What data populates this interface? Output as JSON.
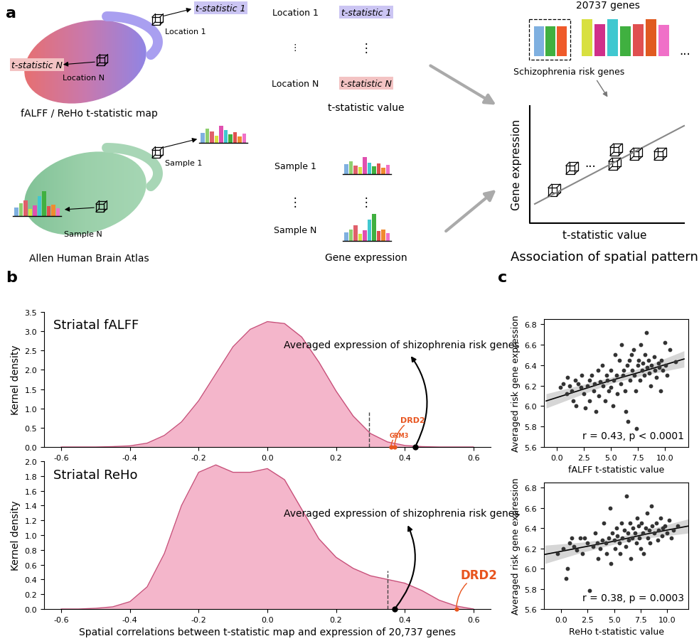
{
  "panel_labels": [
    "a",
    "b",
    "c"
  ],
  "diagram": {
    "map": {
      "caption": "fALFF / ReHo t-statistic map",
      "stat_first": "t-statistic 1",
      "loc_first": "Location 1",
      "stat_last": "t-statistic N",
      "loc_last": "Location N"
    },
    "stat_table": {
      "rows": [
        "Location 1",
        "⋮",
        "Location N"
      ],
      "values": [
        "t-statistic 1",
        "⋮",
        "t-statistic N"
      ],
      "caption": "t-statistic value"
    },
    "atlas": {
      "caption": "Allen Human Brain Atlas",
      "sample_first": "Sample 1",
      "sample_last": "Sample N"
    },
    "expr_table": {
      "rows": [
        "Sample 1",
        "⋮",
        "Sample N"
      ],
      "caption": "Gene expression"
    },
    "genes": {
      "count_label": "20737 genes",
      "subset_label": "Schizophrenia risk genes",
      "more": "..."
    },
    "association": {
      "ylabel": "Gene expression",
      "xlabel": "t-statistic value",
      "dots": "...",
      "caption": "Association of spatial pattern"
    }
  },
  "chart_data": [
    {
      "type": "line",
      "title": "Striatal fALFF",
      "ylabel": "Kernel density",
      "color": "#f4b6cb",
      "x": [
        -0.6,
        -0.55,
        -0.5,
        -0.45,
        -0.4,
        -0.35,
        -0.3,
        -0.25,
        -0.2,
        -0.15,
        -0.1,
        -0.05,
        0.0,
        0.05,
        0.1,
        0.15,
        0.2,
        0.25,
        0.3,
        0.35,
        0.4,
        0.45,
        0.5,
        0.55,
        0.6
      ],
      "values": [
        0,
        0,
        0,
        0.01,
        0.03,
        0.1,
        0.3,
        0.65,
        1.2,
        1.9,
        2.6,
        3.05,
        3.25,
        3.2,
        2.85,
        2.2,
        1.45,
        0.8,
        0.35,
        0.13,
        0.04,
        0.01,
        0,
        0,
        0
      ],
      "xlim": [
        -0.65,
        0.65
      ],
      "xticks": [
        -0.6,
        -0.4,
        -0.2,
        0.0,
        0.2,
        0.4,
        0.6
      ],
      "ylim": [
        0.0,
        3.5
      ],
      "yticks": [
        0.0,
        0.5,
        1.0,
        1.5,
        2.0,
        2.5,
        3.0,
        3.5
      ],
      "threshold": 0.295,
      "markers": [
        {
          "label": "Averaged expression of shizophrenia risk genes",
          "x": 0.43,
          "color": "#000000"
        },
        {
          "label": "DRD2",
          "x": 0.37,
          "color": "#e8541e"
        },
        {
          "label": "GRM3",
          "x": 0.36,
          "color": "#e8541e"
        }
      ]
    },
    {
      "type": "line",
      "title": "Striatal ReHo",
      "ylabel": "Kernel density",
      "xlabel": "Spatial correlations between t-statistic map and expression of 20,737 genes",
      "color": "#f4b6cb",
      "x": [
        -0.6,
        -0.55,
        -0.5,
        -0.45,
        -0.4,
        -0.35,
        -0.3,
        -0.25,
        -0.2,
        -0.15,
        -0.1,
        -0.05,
        0.0,
        0.05,
        0.1,
        0.15,
        0.2,
        0.25,
        0.3,
        0.35,
        0.4,
        0.45,
        0.5,
        0.55,
        0.6
      ],
      "values": [
        0,
        0,
        0.01,
        0.03,
        0.1,
        0.3,
        0.75,
        1.4,
        1.85,
        1.95,
        1.85,
        1.85,
        1.9,
        1.75,
        1.35,
        0.95,
        0.7,
        0.55,
        0.45,
        0.4,
        0.35,
        0.25,
        0.12,
        0.04,
        0
      ],
      "xlim": [
        -0.65,
        0.65
      ],
      "xticks": [
        -0.6,
        -0.4,
        -0.2,
        0.0,
        0.2,
        0.4,
        0.6
      ],
      "ylim": [
        0.0,
        2.0
      ],
      "yticks": [
        0.0,
        0.2,
        0.4,
        0.6,
        0.8,
        1.0,
        1.2,
        1.4,
        1.6,
        1.8,
        2.0
      ],
      "threshold": 0.35,
      "markers": [
        {
          "label": "Averaged expression of shizophrenia risk genes",
          "x": 0.37,
          "color": "#000000"
        },
        {
          "label": "DRD2",
          "x": 0.55,
          "color": "#e8541e"
        }
      ]
    },
    {
      "type": "scatter",
      "xlabel": "fALFF t-statistic value",
      "ylabel": "Averaged risk gene expression",
      "annotation": "r = 0.43, p < 0.0001",
      "color": "#333333",
      "x": [
        0.3,
        0.6,
        0.9,
        1.0,
        1.2,
        1.4,
        1.5,
        1.7,
        1.8,
        2.0,
        2.2,
        2.3,
        2.5,
        2.6,
        2.8,
        3.0,
        3.0,
        3.2,
        3.4,
        3.5,
        3.6,
        3.8,
        3.9,
        4.0,
        4.2,
        4.3,
        4.5,
        4.6,
        4.7,
        4.8,
        5.0,
        5.0,
        5.2,
        5.3,
        5.4,
        5.5,
        5.6,
        5.8,
        5.9,
        6.0,
        6.1,
        6.2,
        6.3,
        6.4,
        6.5,
        6.6,
        6.7,
        6.8,
        6.9,
        7.0,
        7.1,
        7.2,
        7.3,
        7.4,
        7.5,
        7.6,
        7.7,
        7.8,
        7.9,
        8.0,
        8.1,
        8.2,
        8.3,
        8.4,
        8.5,
        8.6,
        8.7,
        8.8,
        9.0,
        9.1,
        9.2,
        9.4,
        9.5,
        9.6,
        9.7,
        9.8,
        10.0,
        10.1,
        10.2,
        10.5,
        11.0
      ],
      "values": [
        6.18,
        6.22,
        6.12,
        6.28,
        6.2,
        6.15,
        6.05,
        6.25,
        6.0,
        6.22,
        6.18,
        6.3,
        6.12,
        5.98,
        6.2,
        6.25,
        6.05,
        6.3,
        6.15,
        6.22,
        5.95,
        6.35,
        6.1,
        6.24,
        6.4,
        6.2,
        6.05,
        6.3,
        6.25,
        6.15,
        6.35,
        6.18,
        6.0,
        6.25,
        6.5,
        6.3,
        6.12,
        6.45,
        6.22,
        6.6,
        6.3,
        6.35,
        6.15,
        5.95,
        6.4,
        5.85,
        6.45,
        6.25,
        6.5,
        6.35,
        6.55,
        6.3,
        6.15,
        5.78,
        6.4,
        6.45,
        6.25,
        6.6,
        6.35,
        6.42,
        6.3,
        6.5,
        6.72,
        6.38,
        6.45,
        6.32,
        6.2,
        6.4,
        6.48,
        6.35,
        6.28,
        6.42,
        6.38,
        6.15,
        6.45,
        6.35,
        6.62,
        6.4,
        6.3,
        6.55,
        6.43
      ],
      "fit": {
        "x": [
          -1.0,
          2.0,
          5.0,
          8.0,
          11.8
        ],
        "values": [
          6.05,
          6.15,
          6.25,
          6.34,
          6.46
        ],
        "lower": [
          5.98,
          6.1,
          6.22,
          6.3,
          6.38
        ],
        "upper": [
          6.12,
          6.2,
          6.28,
          6.38,
          6.54
        ]
      },
      "xlim": [
        -1.2,
        12.2
      ],
      "xticks": [
        0.0,
        2.5,
        5.0,
        7.5,
        10.0
      ],
      "ylim": [
        5.6,
        6.85
      ],
      "yticks": [
        5.6,
        5.8,
        6.0,
        6.2,
        6.4,
        6.6,
        6.8
      ]
    },
    {
      "type": "scatter",
      "xlabel": "ReHo t-statistic value",
      "ylabel": "Averaged risk gene expression",
      "annotation": "r = 0.38, p = 0.0003",
      "color": "#333333",
      "x": [
        -0.3,
        0.2,
        0.5,
        0.6,
        0.8,
        1.0,
        1.2,
        1.5,
        1.8,
        2.0,
        2.2,
        2.5,
        2.7,
        3.0,
        3.2,
        3.4,
        3.5,
        3.7,
        3.9,
        4.0,
        4.2,
        4.3,
        4.5,
        4.6,
        4.7,
        4.8,
        5.0,
        5.1,
        5.2,
        5.3,
        5.5,
        5.6,
        5.7,
        5.8,
        6.0,
        6.1,
        6.2,
        6.3,
        6.4,
        6.5,
        6.6,
        6.7,
        6.8,
        7.0,
        7.1,
        7.2,
        7.3,
        7.4,
        7.5,
        7.6,
        7.7,
        7.8,
        8.0,
        8.1,
        8.2,
        8.3,
        8.4,
        8.5,
        8.6,
        8.8,
        9.0,
        9.1,
        9.2,
        9.4,
        9.5,
        9.6,
        9.8,
        10.0,
        10.2,
        10.4,
        10.6,
        11.0
      ],
      "values": [
        6.15,
        6.2,
        5.9,
        6.0,
        6.25,
        6.3,
        6.22,
        6.18,
        6.3,
        6.15,
        6.3,
        6.25,
        5.78,
        6.22,
        6.35,
        6.25,
        6.1,
        6.2,
        6.28,
        6.45,
        6.25,
        6.15,
        6.3,
        6.6,
        6.05,
        6.35,
        6.28,
        6.2,
        6.4,
        6.32,
        6.25,
        6.15,
        6.45,
        6.3,
        6.38,
        6.22,
        6.72,
        6.35,
        6.28,
        6.45,
        6.1,
        6.3,
        6.4,
        6.35,
        6.25,
        6.5,
        6.42,
        6.3,
        6.2,
        6.45,
        6.35,
        6.15,
        6.4,
        6.55,
        6.3,
        6.38,
        6.25,
        6.62,
        6.42,
        6.35,
        6.45,
        6.28,
        6.38,
        6.5,
        6.32,
        6.4,
        6.42,
        6.35,
        6.48,
        6.3,
        6.38,
        6.42
      ],
      "fit": {
        "x": [
          -1.5,
          2.0,
          5.0,
          8.0,
          12.0
        ],
        "values": [
          6.14,
          6.21,
          6.27,
          6.34,
          6.42
        ],
        "lower": [
          6.05,
          6.16,
          6.24,
          6.3,
          6.35
        ],
        "upper": [
          6.23,
          6.26,
          6.3,
          6.38,
          6.49
        ]
      },
      "xlim": [
        -1.6,
        12.0
      ],
      "xticks": [
        0.0,
        2.5,
        5.0,
        7.5,
        10.0
      ],
      "ylim": [
        5.6,
        6.85
      ],
      "yticks": [
        5.6,
        5.8,
        6.0,
        6.2,
        6.4,
        6.6,
        6.8
      ]
    }
  ]
}
